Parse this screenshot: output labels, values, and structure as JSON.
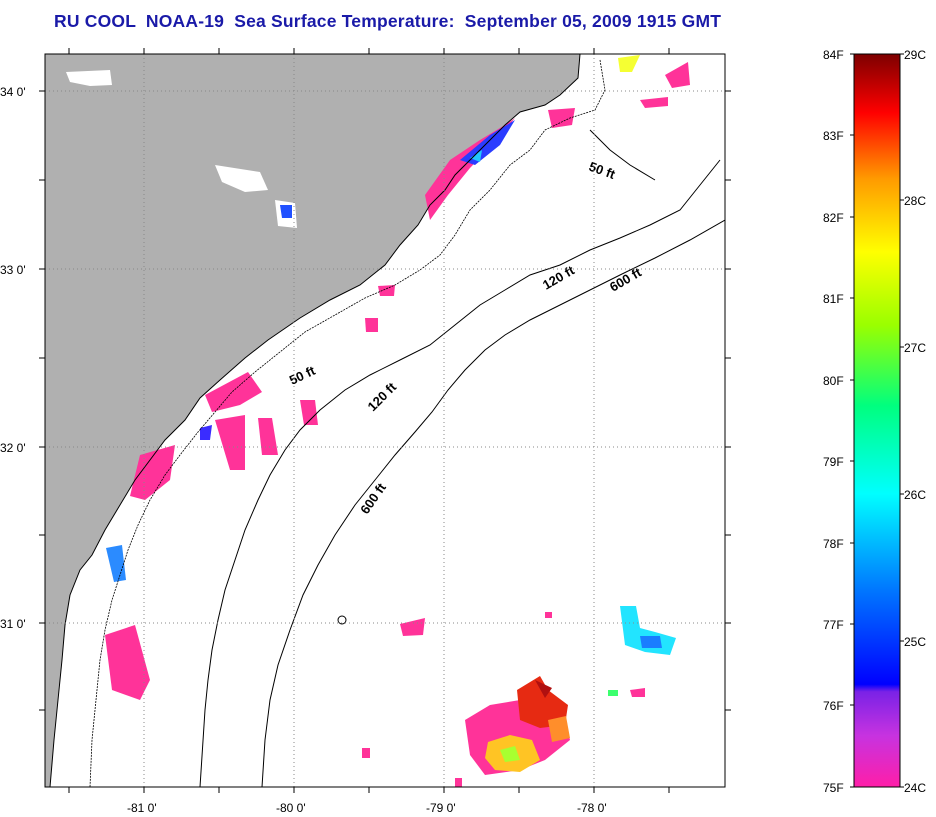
{
  "title": "RU COOL  NOAA-19  Sea Surface Temperature:  September 05, 2009 1915 GMT",
  "axes": {
    "lat_labels": [
      "34 0'",
      "33 0'",
      "32 0'",
      "31 0'"
    ],
    "lon_labels": [
      "-81 0'",
      "-80 0'",
      "-79 0'",
      "-78 0'"
    ]
  },
  "contours": [
    "50 ft",
    "50 ft",
    "120 ft",
    "120 ft",
    "600 ft",
    "600 ft"
  ],
  "colorbar": {
    "fahrenheit": [
      "84F",
      "83F",
      "82F",
      "81F",
      "80F",
      "79F",
      "78F",
      "77F",
      "76F",
      "75F"
    ],
    "celsius": [
      "29C",
      "28C",
      "27C",
      "26C",
      "25C",
      "24C"
    ]
  },
  "colors": {
    "land": "#b0b0b0",
    "grid": "#888888",
    "title": "#1a1aa8",
    "sst_pink": "#ff3399"
  }
}
